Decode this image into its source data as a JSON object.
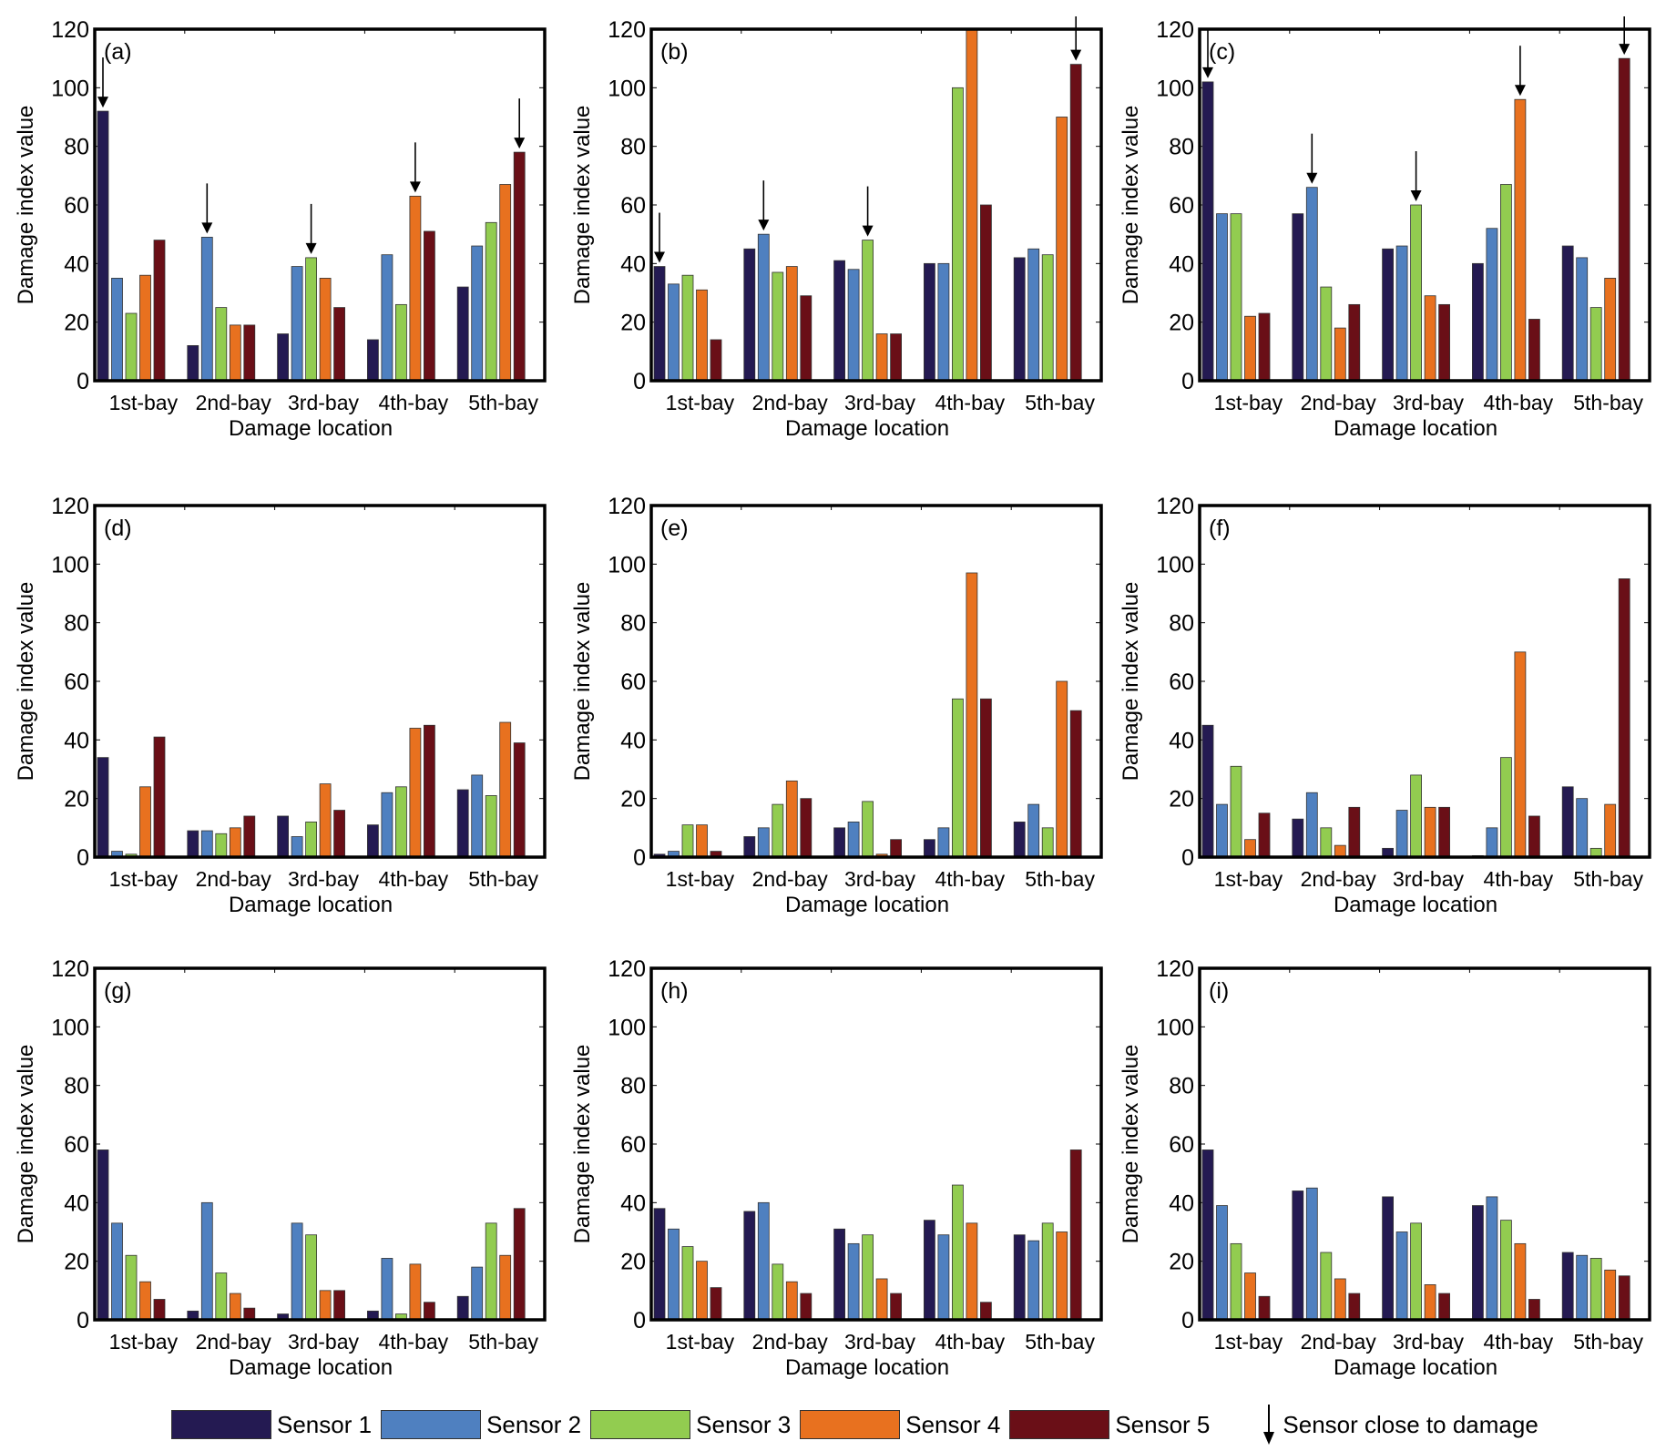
{
  "figure": {
    "legend": {
      "series": [
        "Sensor 1",
        "Sensor 2",
        "Sensor 3",
        "Sensor 4",
        "Sensor 5"
      ],
      "arrow_label": "Sensor close to damage"
    },
    "colors": [
      "#241A52",
      "#4F80C0",
      "#92CC50",
      "#E8711F",
      "#6A0F17"
    ]
  },
  "chart_data": [
    {
      "type": "bar",
      "panel_label": "(a)",
      "categories": [
        "1st-bay",
        "2nd-bay",
        "3rd-bay",
        "4th-bay",
        "5th-bay"
      ],
      "xlabel": "Damage location",
      "ylabel": "Damage index value",
      "ylim": [
        0,
        120
      ],
      "yticks": [
        0,
        20,
        40,
        60,
        80,
        100,
        120
      ],
      "grid": false,
      "legend": "bottom",
      "series": [
        {
          "name": "Sensor 1",
          "values": [
            92,
            12,
            16,
            14,
            32
          ]
        },
        {
          "name": "Sensor 2",
          "values": [
            35,
            49,
            39,
            43,
            46
          ]
        },
        {
          "name": "Sensor 3",
          "values": [
            23,
            25,
            42,
            26,
            54
          ]
        },
        {
          "name": "Sensor 4",
          "values": [
            36,
            19,
            35,
            63,
            67
          ]
        },
        {
          "name": "Sensor 5",
          "values": [
            48,
            19,
            25,
            51,
            78
          ]
        }
      ],
      "arrows": [
        [
          0,
          0
        ],
        [
          1,
          1
        ],
        [
          2,
          2
        ],
        [
          3,
          3
        ],
        [
          4,
          4
        ]
      ]
    },
    {
      "type": "bar",
      "panel_label": "(b)",
      "categories": [
        "1st-bay",
        "2nd-bay",
        "3rd-bay",
        "4th-bay",
        "5th-bay"
      ],
      "xlabel": "Damage location",
      "ylabel": "Damage index value",
      "ylim": [
        0,
        120
      ],
      "yticks": [
        0,
        20,
        40,
        60,
        80,
        100,
        120
      ],
      "grid": false,
      "legend": "bottom",
      "series": [
        {
          "name": "Sensor 1",
          "values": [
            39,
            45,
            41,
            40,
            42
          ]
        },
        {
          "name": "Sensor 2",
          "values": [
            33,
            50,
            38,
            40,
            45
          ]
        },
        {
          "name": "Sensor 3",
          "values": [
            36,
            37,
            48,
            100,
            43
          ]
        },
        {
          "name": "Sensor 4",
          "values": [
            31,
            39,
            16,
            120,
            90
          ]
        },
        {
          "name": "Sensor 5",
          "values": [
            14,
            29,
            16,
            60,
            108
          ]
        }
      ],
      "arrows": [
        [
          0,
          0
        ],
        [
          1,
          1
        ],
        [
          2,
          2
        ],
        [
          4,
          4
        ]
      ]
    },
    {
      "type": "bar",
      "panel_label": "(c)",
      "categories": [
        "1st-bay",
        "2nd-bay",
        "3rd-bay",
        "4th-bay",
        "5th-bay"
      ],
      "xlabel": "Damage location",
      "ylabel": "Damage index value",
      "ylim": [
        0,
        120
      ],
      "yticks": [
        0,
        20,
        40,
        60,
        80,
        100,
        120
      ],
      "grid": false,
      "legend": "bottom",
      "series": [
        {
          "name": "Sensor 1",
          "values": [
            102,
            57,
            45,
            40,
            46
          ]
        },
        {
          "name": "Sensor 2",
          "values": [
            57,
            66,
            46,
            52,
            42
          ]
        },
        {
          "name": "Sensor 3",
          "values": [
            57,
            32,
            60,
            67,
            25
          ]
        },
        {
          "name": "Sensor 4",
          "values": [
            22,
            18,
            29,
            96,
            35
          ]
        },
        {
          "name": "Sensor 5",
          "values": [
            23,
            26,
            26,
            21,
            110
          ]
        }
      ],
      "arrows": [
        [
          0,
          0
        ],
        [
          1,
          1
        ],
        [
          2,
          2
        ],
        [
          3,
          3
        ],
        [
          4,
          4
        ]
      ]
    },
    {
      "type": "bar",
      "panel_label": "(d)",
      "categories": [
        "1st-bay",
        "2nd-bay",
        "3rd-bay",
        "4th-bay",
        "5th-bay"
      ],
      "xlabel": "Damage location",
      "ylabel": "Damage index value",
      "ylim": [
        0,
        120
      ],
      "yticks": [
        0,
        20,
        40,
        60,
        80,
        100,
        120
      ],
      "grid": false,
      "legend": "bottom",
      "series": [
        {
          "name": "Sensor 1",
          "values": [
            34,
            9,
            14,
            11,
            23
          ]
        },
        {
          "name": "Sensor 2",
          "values": [
            2,
            9,
            7,
            22,
            28
          ]
        },
        {
          "name": "Sensor 3",
          "values": [
            1,
            8,
            12,
            24,
            21
          ]
        },
        {
          "name": "Sensor 4",
          "values": [
            24,
            10,
            25,
            44,
            46
          ]
        },
        {
          "name": "Sensor 5",
          "values": [
            41,
            14,
            16,
            45,
            39
          ]
        }
      ],
      "arrows": []
    },
    {
      "type": "bar",
      "panel_label": "(e)",
      "categories": [
        "1st-bay",
        "2nd-bay",
        "3rd-bay",
        "4th-bay",
        "5th-bay"
      ],
      "xlabel": "Damage location",
      "ylabel": "Damage index value",
      "ylim": [
        0,
        120
      ],
      "yticks": [
        0,
        20,
        40,
        60,
        80,
        100,
        120
      ],
      "grid": false,
      "legend": "bottom",
      "series": [
        {
          "name": "Sensor 1",
          "values": [
            1,
            7,
            10,
            6,
            12
          ]
        },
        {
          "name": "Sensor 2",
          "values": [
            2,
            10,
            12,
            10,
            18
          ]
        },
        {
          "name": "Sensor 3",
          "values": [
            11,
            18,
            19,
            54,
            10
          ]
        },
        {
          "name": "Sensor 4",
          "values": [
            11,
            26,
            1,
            97,
            60
          ]
        },
        {
          "name": "Sensor 5",
          "values": [
            2,
            20,
            6,
            54,
            50
          ]
        }
      ],
      "arrows": []
    },
    {
      "type": "bar",
      "panel_label": "(f)",
      "categories": [
        "1st-bay",
        "2nd-bay",
        "3rd-bay",
        "4th-bay",
        "5th-bay"
      ],
      "xlabel": "Damage location",
      "ylabel": "Damage index value",
      "ylim": [
        0,
        120
      ],
      "yticks": [
        0,
        20,
        40,
        60,
        80,
        100,
        120
      ],
      "grid": false,
      "legend": "bottom",
      "series": [
        {
          "name": "Sensor 1",
          "values": [
            45,
            13,
            3,
            0.5,
            24
          ]
        },
        {
          "name": "Sensor 2",
          "values": [
            18,
            22,
            16,
            10,
            20
          ]
        },
        {
          "name": "Sensor 3",
          "values": [
            31,
            10,
            28,
            34,
            3
          ]
        },
        {
          "name": "Sensor 4",
          "values": [
            6,
            4,
            17,
            70,
            18
          ]
        },
        {
          "name": "Sensor 5",
          "values": [
            15,
            17,
            17,
            14,
            95
          ]
        }
      ],
      "arrows": []
    },
    {
      "type": "bar",
      "panel_label": "(g)",
      "categories": [
        "1st-bay",
        "2nd-bay",
        "3rd-bay",
        "4th-bay",
        "5th-bay"
      ],
      "xlabel": "Damage location",
      "ylabel": "Damage index value",
      "ylim": [
        0,
        120
      ],
      "yticks": [
        0,
        20,
        40,
        60,
        80,
        100,
        120
      ],
      "grid": false,
      "legend": "bottom",
      "series": [
        {
          "name": "Sensor 1",
          "values": [
            58,
            3,
            2,
            3,
            8
          ]
        },
        {
          "name": "Sensor 2",
          "values": [
            33,
            40,
            33,
            21,
            18
          ]
        },
        {
          "name": "Sensor 3",
          "values": [
            22,
            16,
            29,
            2,
            33
          ]
        },
        {
          "name": "Sensor 4",
          "values": [
            13,
            9,
            10,
            19,
            22
          ]
        },
        {
          "name": "Sensor 5",
          "values": [
            7,
            4,
            10,
            6,
            38
          ]
        }
      ],
      "arrows": []
    },
    {
      "type": "bar",
      "panel_label": "(h)",
      "categories": [
        "1st-bay",
        "2nd-bay",
        "3rd-bay",
        "4th-bay",
        "5th-bay"
      ],
      "xlabel": "Damage location",
      "ylabel": "Damage index value",
      "ylim": [
        0,
        120
      ],
      "yticks": [
        0,
        20,
        40,
        60,
        80,
        100,
        120
      ],
      "grid": false,
      "legend": "bottom",
      "series": [
        {
          "name": "Sensor 1",
          "values": [
            38,
            37,
            31,
            34,
            29
          ]
        },
        {
          "name": "Sensor 2",
          "values": [
            31,
            40,
            26,
            29,
            27
          ]
        },
        {
          "name": "Sensor 3",
          "values": [
            25,
            19,
            29,
            46,
            33
          ]
        },
        {
          "name": "Sensor 4",
          "values": [
            20,
            13,
            14,
            33,
            30
          ]
        },
        {
          "name": "Sensor 5",
          "values": [
            11,
            9,
            9,
            6,
            58
          ]
        }
      ],
      "arrows": []
    },
    {
      "type": "bar",
      "panel_label": "(i)",
      "categories": [
        "1st-bay",
        "2nd-bay",
        "3rd-bay",
        "4th-bay",
        "5th-bay"
      ],
      "xlabel": "Damage location",
      "ylabel": "Damage index value",
      "ylim": [
        0,
        120
      ],
      "yticks": [
        0,
        20,
        40,
        60,
        80,
        100,
        120
      ],
      "grid": false,
      "legend": "bottom",
      "series": [
        {
          "name": "Sensor 1",
          "values": [
            58,
            44,
            42,
            39,
            23
          ]
        },
        {
          "name": "Sensor 2",
          "values": [
            39,
            45,
            30,
            42,
            22
          ]
        },
        {
          "name": "Sensor 3",
          "values": [
            26,
            23,
            33,
            34,
            21
          ]
        },
        {
          "name": "Sensor 4",
          "values": [
            16,
            14,
            12,
            26,
            17
          ]
        },
        {
          "name": "Sensor 5",
          "values": [
            8,
            9,
            9,
            7,
            15
          ]
        }
      ],
      "arrows": []
    }
  ]
}
